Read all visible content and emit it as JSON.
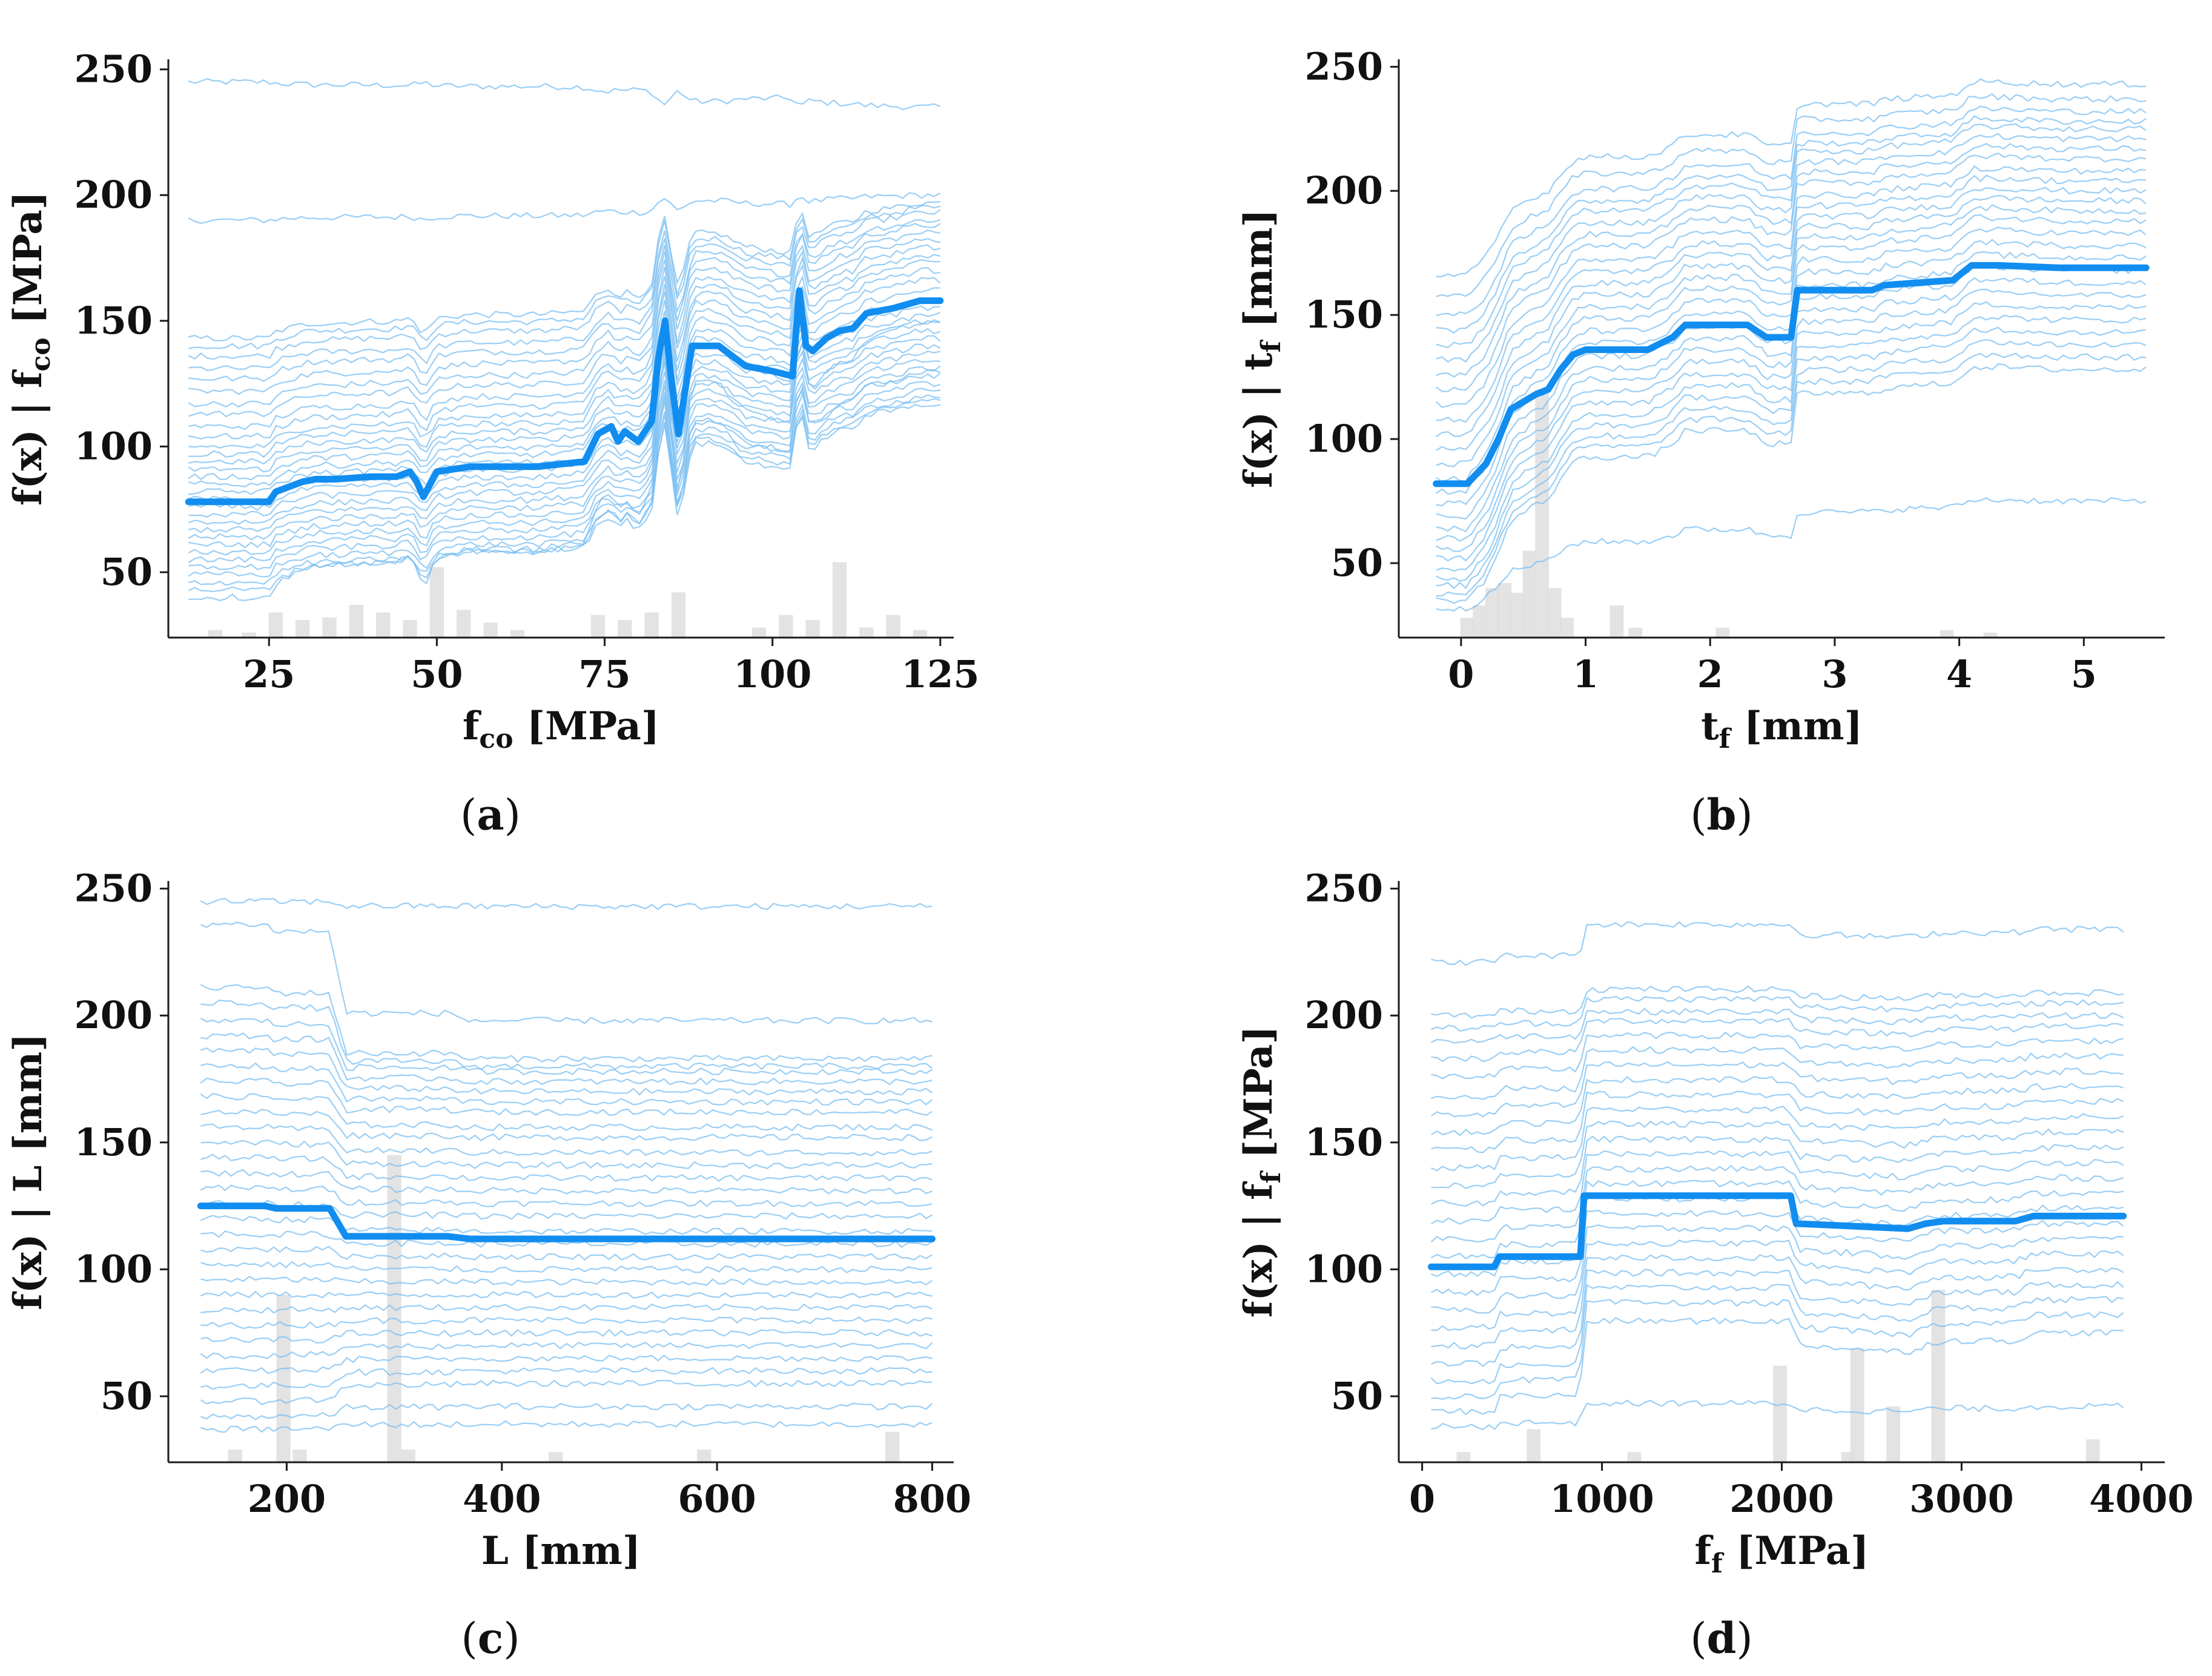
{
  "colors": {
    "ice_line": "#78bdf2",
    "pdp_line": "#118df0",
    "histogram": "#dedede",
    "axis": "#1b1b1b"
  },
  "chart_data": [
    {
      "panel": "a",
      "caption_letter": "a",
      "type": "line",
      "ylabel": {
        "prefix": "f(x)  |  f",
        "sub": "co",
        "suffix": " [MPa]"
      },
      "xlabel": {
        "prefix": "f",
        "sub": "co",
        "suffix": " [MPa]"
      },
      "xlim": [
        10,
        127
      ],
      "ylim": [
        24,
        254
      ],
      "xticks": [
        25,
        50,
        75,
        100,
        125
      ],
      "yticks": [
        50,
        100,
        150,
        200,
        250
      ],
      "grid": false,
      "pdp": {
        "x": [
          13,
          25,
          26,
          28,
          30,
          32,
          35,
          40,
          44,
          46,
          47,
          48,
          50,
          55,
          65,
          72,
          74,
          76,
          77,
          78,
          80,
          82,
          83,
          84,
          85,
          86,
          88,
          92,
          96,
          100,
          103,
          104,
          105,
          106,
          108,
          110,
          112,
          114,
          118,
          122,
          125
        ],
        "y": [
          78,
          78,
          82,
          84,
          86,
          87,
          87,
          88,
          88,
          90,
          86,
          80,
          90,
          92,
          92,
          94,
          105,
          108,
          102,
          106,
          102,
          110,
          135,
          150,
          125,
          105,
          140,
          140,
          132,
          130,
          128,
          162,
          140,
          138,
          143,
          146,
          147,
          153,
          155,
          158,
          158
        ]
      },
      "ice_levels": [
        245,
        190,
        143,
        140,
        136,
        131,
        127,
        122,
        117,
        113,
        108,
        104,
        100,
        97,
        94,
        91,
        88,
        85,
        82,
        79,
        76,
        73,
        70,
        67,
        64,
        61,
        58,
        55,
        52,
        49,
        46,
        43,
        40
      ],
      "ice_targets": [
        235,
        200,
        197,
        195,
        193,
        190,
        188,
        185,
        182,
        179,
        176,
        173,
        170,
        166,
        162,
        158,
        155,
        152,
        149,
        146,
        143,
        140,
        137,
        134,
        131,
        128,
        125,
        122,
        120,
        118,
        117,
        130,
        150
      ],
      "histogram": {
        "bins": [
          17,
          22,
          26,
          30,
          34,
          38,
          42,
          46,
          50,
          54,
          58,
          62,
          74,
          78,
          82,
          86,
          98,
          102,
          106,
          110,
          114,
          118,
          122
        ],
        "heights": [
          27,
          26,
          34,
          31,
          32,
          37,
          34,
          31,
          52,
          35,
          30,
          27,
          33,
          31,
          34,
          42,
          28,
          33,
          31,
          54,
          28,
          33,
          27
        ]
      }
    },
    {
      "panel": "b",
      "caption_letter": "b",
      "type": "line",
      "ylabel": {
        "prefix": "f(x)  |  t",
        "sub": "f",
        "suffix": " [mm]"
      },
      "xlabel": {
        "prefix": "t",
        "sub": "f",
        "suffix": " [mm]"
      },
      "xlim": [
        -0.5,
        5.65
      ],
      "ylim": [
        20,
        253
      ],
      "xticks": [
        0,
        1,
        2,
        3,
        4,
        5
      ],
      "yticks": [
        50,
        100,
        150,
        200,
        250
      ],
      "grid": false,
      "pdp": {
        "x": [
          -0.2,
          0.05,
          0.2,
          0.3,
          0.4,
          0.5,
          0.6,
          0.7,
          0.8,
          0.9,
          1.0,
          1.5,
          1.7,
          1.8,
          2.3,
          2.45,
          2.65,
          2.7,
          3.3,
          3.4,
          3.95,
          4.1,
          4.3,
          4.8,
          5.5
        ],
        "y": [
          82,
          82,
          90,
          100,
          112,
          115,
          118,
          120,
          128,
          134,
          136,
          136,
          141,
          146,
          146,
          141,
          141,
          160,
          160,
          162,
          164,
          170,
          170,
          169,
          169
        ]
      },
      "ice_levels": [
        166,
        158,
        150,
        144,
        138,
        132,
        126,
        120,
        114,
        108,
        102,
        96,
        90,
        84,
        79,
        74,
        69,
        64,
        60,
        56,
        52,
        48,
        44,
        41,
        38,
        35,
        32
      ],
      "ice_targets": [
        243,
        237,
        232,
        228,
        225,
        221,
        217,
        213,
        208,
        204,
        200,
        196,
        192,
        188,
        183,
        178,
        173,
        168,
        163,
        158,
        153,
        148,
        143,
        138,
        133,
        128,
        75
      ],
      "histogram": {
        "bins": [
          0.05,
          0.15,
          0.25,
          0.35,
          0.45,
          0.55,
          0.65,
          0.75,
          0.85,
          1.25,
          1.4,
          2.1,
          3.9,
          4.25
        ],
        "heights": [
          28,
          33,
          40,
          42,
          38,
          55,
          120,
          40,
          28,
          33,
          24,
          24,
          23,
          22
        ]
      }
    },
    {
      "panel": "c",
      "caption_letter": "c",
      "type": "line",
      "ylabel": {
        "prefix": "f(x)  |  L",
        "sub": "",
        "suffix": " [mm]"
      },
      "xlabel": {
        "prefix": "L",
        "sub": "",
        "suffix": " [mm]"
      },
      "xlim": [
        90,
        820
      ],
      "ylim": [
        24,
        253
      ],
      "xticks": [
        200,
        400,
        600,
        800
      ],
      "yticks": [
        50,
        100,
        150,
        200,
        250
      ],
      "grid": false,
      "pdp": {
        "x": [
          120,
          180,
          190,
          240,
          255,
          300,
          310,
          350,
          370,
          400,
          600,
          800
        ],
        "y": [
          125,
          125,
          124,
          124,
          113,
          113,
          113,
          113,
          112,
          112,
          112,
          112
        ]
      },
      "ice_levels": [
        245,
        236,
        211,
        205,
        198,
        192,
        186,
        180,
        174,
        168,
        162,
        156,
        150,
        144,
        138,
        132,
        126,
        120,
        114,
        108,
        102,
        96,
        90,
        84,
        78,
        72,
        66,
        60,
        54,
        48,
        42,
        37
      ],
      "ice_targets": [
        243,
        198,
        183,
        180,
        178,
        174,
        170,
        166,
        162,
        156,
        152,
        146,
        141,
        136,
        131,
        126,
        121,
        115,
        110,
        105,
        100,
        95,
        90,
        85,
        80,
        75,
        70,
        65,
        60,
        55,
        46,
        39
      ],
      "histogram": {
        "bins": [
          152,
          197,
          212,
          300,
          313,
          450,
          588,
          763
        ],
        "heights": [
          29,
          90,
          29,
          145,
          29,
          28,
          29,
          36
        ]
      }
    },
    {
      "panel": "d",
      "caption_letter": "d",
      "type": "line",
      "ylabel": {
        "prefix": "f(x)  |  f",
        "sub": "f",
        "suffix": " [MPa]"
      },
      "xlabel": {
        "prefix": "f",
        "sub": "f",
        "suffix": " [MPa]"
      },
      "xlim": [
        -130,
        4130
      ],
      "ylim": [
        24,
        253
      ],
      "xticks": [
        0,
        1000,
        2000,
        3000,
        4000
      ],
      "yticks": [
        50,
        100,
        150,
        200,
        250
      ],
      "grid": false,
      "pdp": {
        "x": [
          50,
          400,
          430,
          880,
          900,
          1300,
          2050,
          2080,
          2400,
          2700,
          2800,
          2900,
          3300,
          3400,
          3900
        ],
        "y": [
          101,
          101,
          105,
          105,
          129,
          129,
          129,
          118,
          117,
          116,
          118,
          119,
          119,
          121,
          121
        ]
      },
      "ice_levels": [
        221,
        200,
        195,
        190,
        183,
        176,
        168,
        161,
        154,
        147,
        140,
        133,
        126,
        119,
        112,
        105,
        98,
        91,
        84,
        77,
        70,
        63,
        56,
        50,
        44,
        38
      ],
      "ice_targets": [
        234,
        209,
        205,
        200,
        196,
        190,
        184,
        178,
        172,
        166,
        160,
        154,
        148,
        142,
        136,
        130,
        124,
        118,
        112,
        106,
        100,
        94,
        88,
        82,
        75,
        46
      ],
      "histogram": {
        "bins": [
          230,
          620,
          1180,
          1990,
          2370,
          2420,
          2620,
          2870,
          3730
        ],
        "heights": [
          28,
          37,
          28,
          62,
          28,
          69,
          46,
          92,
          33
        ]
      }
    }
  ]
}
